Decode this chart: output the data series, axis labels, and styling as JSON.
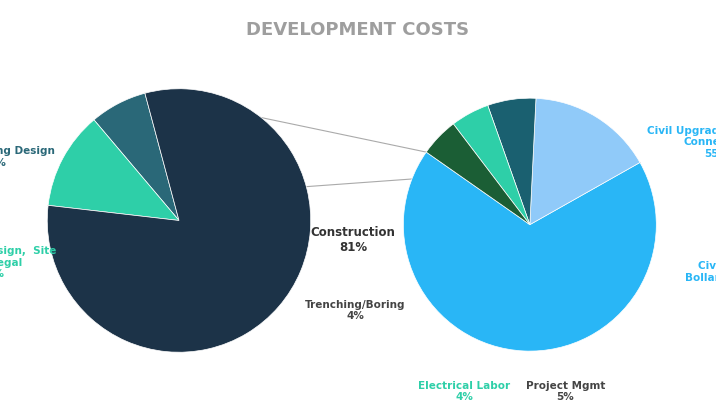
{
  "title": "DEVELOPMENT COSTS",
  "title_color": "#9E9E9E",
  "title_fontsize": 13,
  "background_color": "#FFFFFF",
  "pie1_values": [
    7,
    12,
    81
  ],
  "pie1_colors": [
    "#2A6878",
    "#2ECFA8",
    "#1C3348"
  ],
  "pie1_startangle": 105,
  "pie2_values": [
    55,
    13,
    5,
    4,
    4
  ],
  "pie2_colors": [
    "#29B6F6",
    "#90CAF9",
    "#1A6070",
    "#2ECFA8",
    "#1B5E35"
  ],
  "pie2_startangle": 145,
  "connector_color": "#AAAAAA",
  "fig_width": 7.16,
  "fig_height": 4.16
}
